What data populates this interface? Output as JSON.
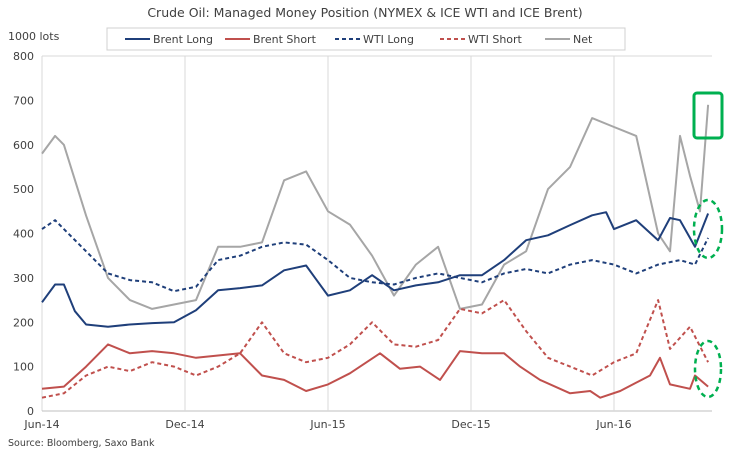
{
  "chart_data": {
    "type": "line",
    "title": "Crude Oil: Managed Money Position (NYMEX & ICE WTI and ICE Brent)",
    "ylabel": "1000 lots",
    "xlabel": "",
    "ylim": [
      0,
      800
    ],
    "yticks": [
      0,
      100,
      200,
      300,
      400,
      500,
      600,
      700,
      800
    ],
    "x_unit": "months since Jun-14",
    "xlim": [
      0,
      28.1
    ],
    "xticks": [
      {
        "label": "Jun-14",
        "x": 0
      },
      {
        "label": "Dec-14",
        "x": 6
      },
      {
        "label": "Jun-15",
        "x": 12
      },
      {
        "label": "Dec-15",
        "x": 18
      },
      {
        "label": "Jun-16",
        "x": 24
      }
    ],
    "grid": "vertical",
    "legend_position": "top",
    "source": "Source: Bloomberg, Saxo Bank",
    "series": [
      {
        "name": "Brent Long",
        "color": "#1f3f7a",
        "dash": false,
        "points": [
          [
            0,
            245
          ],
          [
            0.55,
            285
          ],
          [
            0.92,
            285
          ],
          [
            1.38,
            225
          ],
          [
            1.85,
            195
          ],
          [
            2.77,
            190
          ],
          [
            3.69,
            195
          ],
          [
            4.62,
            198
          ],
          [
            5.54,
            200
          ],
          [
            6.46,
            227
          ],
          [
            7.39,
            272
          ],
          [
            8.31,
            277
          ],
          [
            9.23,
            283
          ],
          [
            10.16,
            317
          ],
          [
            11.08,
            328
          ],
          [
            11.46,
            300
          ],
          [
            12.0,
            260
          ],
          [
            12.92,
            272
          ],
          [
            13.85,
            306
          ],
          [
            14.77,
            272
          ],
          [
            15.69,
            283
          ],
          [
            16.62,
            290
          ],
          [
            17.54,
            306
          ],
          [
            18.46,
            306
          ],
          [
            19.39,
            340
          ],
          [
            20.31,
            385
          ],
          [
            21.23,
            396
          ],
          [
            22.16,
            419
          ],
          [
            23.08,
            441
          ],
          [
            23.67,
            448
          ],
          [
            24.0,
            410
          ],
          [
            24.93,
            430
          ],
          [
            25.85,
            385
          ],
          [
            26.35,
            435
          ],
          [
            26.77,
            430
          ],
          [
            27.4,
            370
          ],
          [
            27.95,
            445
          ]
        ]
      },
      {
        "name": "Brent Short",
        "color": "#c0504d",
        "dash": false,
        "points": [
          [
            0,
            50
          ],
          [
            0.92,
            55
          ],
          [
            1.85,
            100
          ],
          [
            2.77,
            150
          ],
          [
            3.69,
            130
          ],
          [
            4.62,
            135
          ],
          [
            5.54,
            130
          ],
          [
            6.46,
            120
          ],
          [
            7.39,
            125
          ],
          [
            8.31,
            130
          ],
          [
            9.23,
            80
          ],
          [
            10.16,
            70
          ],
          [
            11.08,
            45
          ],
          [
            12.0,
            60
          ],
          [
            12.92,
            85
          ],
          [
            14.18,
            130
          ],
          [
            15.02,
            95
          ],
          [
            15.86,
            100
          ],
          [
            16.7,
            70
          ],
          [
            17.54,
            135
          ],
          [
            18.46,
            130
          ],
          [
            19.39,
            130
          ],
          [
            20.06,
            100
          ],
          [
            20.9,
            70
          ],
          [
            22.16,
            40
          ],
          [
            23.0,
            45
          ],
          [
            23.42,
            30
          ],
          [
            24.26,
            45
          ],
          [
            25.51,
            80
          ],
          [
            25.93,
            120
          ],
          [
            26.35,
            60
          ],
          [
            27.19,
            50
          ],
          [
            27.4,
            80
          ],
          [
            27.95,
            55
          ]
        ]
      },
      {
        "name": "WTI Long",
        "color": "#1f3f7a",
        "dash": true,
        "points": [
          [
            0,
            410
          ],
          [
            0.55,
            430
          ],
          [
            0.92,
            410
          ],
          [
            1.85,
            360
          ],
          [
            2.77,
            310
          ],
          [
            3.69,
            295
          ],
          [
            4.62,
            290
          ],
          [
            5.54,
            270
          ],
          [
            6.46,
            280
          ],
          [
            7.39,
            340
          ],
          [
            8.31,
            350
          ],
          [
            9.23,
            370
          ],
          [
            10.16,
            380
          ],
          [
            11.08,
            375
          ],
          [
            12.0,
            340
          ],
          [
            12.92,
            300
          ],
          [
            13.85,
            290
          ],
          [
            14.77,
            285
          ],
          [
            15.69,
            300
          ],
          [
            16.62,
            310
          ],
          [
            17.54,
            300
          ],
          [
            18.46,
            290
          ],
          [
            19.39,
            310
          ],
          [
            20.31,
            320
          ],
          [
            21.23,
            310
          ],
          [
            22.16,
            330
          ],
          [
            23.08,
            340
          ],
          [
            24.0,
            330
          ],
          [
            24.93,
            310
          ],
          [
            25.85,
            330
          ],
          [
            26.77,
            340
          ],
          [
            27.4,
            330
          ],
          [
            27.95,
            390
          ]
        ]
      },
      {
        "name": "WTI Short",
        "color": "#c0504d",
        "dash": true,
        "points": [
          [
            0,
            30
          ],
          [
            0.92,
            40
          ],
          [
            1.85,
            80
          ],
          [
            2.77,
            100
          ],
          [
            3.69,
            90
          ],
          [
            4.62,
            110
          ],
          [
            5.54,
            100
          ],
          [
            6.46,
            80
          ],
          [
            7.39,
            100
          ],
          [
            8.31,
            130
          ],
          [
            9.23,
            200
          ],
          [
            10.16,
            130
          ],
          [
            11.08,
            110
          ],
          [
            12.0,
            120
          ],
          [
            12.92,
            150
          ],
          [
            13.85,
            200
          ],
          [
            14.77,
            150
          ],
          [
            15.69,
            145
          ],
          [
            16.62,
            160
          ],
          [
            17.54,
            230
          ],
          [
            18.46,
            220
          ],
          [
            19.39,
            250
          ],
          [
            20.31,
            180
          ],
          [
            21.23,
            120
          ],
          [
            22.16,
            100
          ],
          [
            23.08,
            80
          ],
          [
            24.0,
            110
          ],
          [
            24.93,
            130
          ],
          [
            25.85,
            250
          ],
          [
            26.35,
            140
          ],
          [
            27.19,
            190
          ],
          [
            27.95,
            110
          ]
        ]
      },
      {
        "name": "Net",
        "color": "#a6a6a6",
        "dash": false,
        "points": [
          [
            0,
            580
          ],
          [
            0.55,
            620
          ],
          [
            0.92,
            600
          ],
          [
            1.85,
            440
          ],
          [
            2.77,
            300
          ],
          [
            3.69,
            250
          ],
          [
            4.62,
            230
          ],
          [
            5.54,
            240
          ],
          [
            6.46,
            250
          ],
          [
            7.39,
            370
          ],
          [
            8.31,
            370
          ],
          [
            9.23,
            380
          ],
          [
            10.16,
            520
          ],
          [
            11.08,
            540
          ],
          [
            12.0,
            450
          ],
          [
            12.92,
            420
          ],
          [
            13.85,
            350
          ],
          [
            14.77,
            260
          ],
          [
            15.69,
            330
          ],
          [
            16.62,
            370
          ],
          [
            17.54,
            230
          ],
          [
            18.46,
            240
          ],
          [
            19.39,
            330
          ],
          [
            20.31,
            360
          ],
          [
            21.23,
            500
          ],
          [
            22.16,
            550
          ],
          [
            23.08,
            660
          ],
          [
            24.0,
            640
          ],
          [
            24.93,
            620
          ],
          [
            25.85,
            400
          ],
          [
            26.35,
            360
          ],
          [
            26.77,
            620
          ],
          [
            27.19,
            530
          ],
          [
            27.61,
            450
          ],
          [
            27.95,
            690
          ]
        ]
      }
    ],
    "annotations": [
      {
        "type": "box",
        "color": "#00b050",
        "target": "Net latest value ~690"
      },
      {
        "type": "dashed-ellipse",
        "color": "#00b050",
        "target": "Long positions latest values"
      },
      {
        "type": "dashed-ellipse",
        "color": "#00b050",
        "target": "Short positions latest values"
      }
    ]
  }
}
